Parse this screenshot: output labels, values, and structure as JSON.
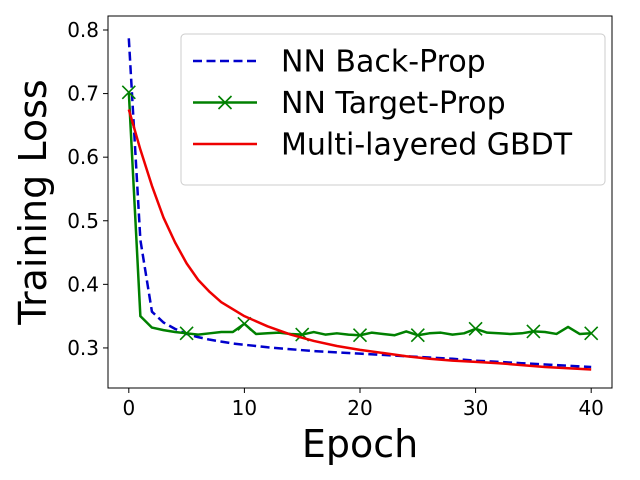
{
  "chart_data": {
    "type": "line",
    "xlabel": "Epoch",
    "ylabel": "Training Loss",
    "xlim": [
      -1.8,
      41.8
    ],
    "ylim": [
      0.237,
      0.822
    ],
    "xticks": [
      0,
      10,
      20,
      30,
      40
    ],
    "yticks": [
      0.3,
      0.4,
      0.5,
      0.6,
      0.7,
      0.8
    ],
    "xtick_labels": [
      "0",
      "10",
      "20",
      "30",
      "40"
    ],
    "ytick_labels": [
      "0.3",
      "0.4",
      "0.5",
      "0.6",
      "0.7",
      "0.8"
    ],
    "grid": false,
    "legend_position": "top-right",
    "series": [
      {
        "name": "NN Back-Prop",
        "color": "#0000cc",
        "style": "dashed",
        "marker": "none",
        "x": [
          0,
          1,
          2,
          3,
          4,
          5,
          6,
          7,
          8,
          9,
          10,
          12,
          14,
          16,
          18,
          20,
          22,
          24,
          26,
          28,
          30,
          32,
          34,
          36,
          38,
          40
        ],
        "y": [
          0.787,
          0.47,
          0.357,
          0.34,
          0.33,
          0.322,
          0.317,
          0.313,
          0.31,
          0.307,
          0.305,
          0.301,
          0.298,
          0.295,
          0.293,
          0.291,
          0.289,
          0.287,
          0.285,
          0.283,
          0.28,
          0.278,
          0.276,
          0.274,
          0.272,
          0.27
        ]
      },
      {
        "name": "NN Target-Prop",
        "color": "#008000",
        "style": "solid",
        "marker": "x",
        "marker_every": 5,
        "x": [
          0,
          1,
          2,
          3,
          4,
          5,
          6,
          7,
          8,
          9,
          10,
          11,
          12,
          13,
          14,
          15,
          16,
          17,
          18,
          19,
          20,
          21,
          22,
          23,
          24,
          25,
          26,
          27,
          28,
          29,
          30,
          31,
          32,
          33,
          34,
          35,
          36,
          37,
          38,
          39,
          40
        ],
        "y": [
          0.702,
          0.35,
          0.332,
          0.328,
          0.325,
          0.323,
          0.321,
          0.323,
          0.325,
          0.325,
          0.338,
          0.322,
          0.323,
          0.324,
          0.322,
          0.321,
          0.325,
          0.321,
          0.323,
          0.321,
          0.32,
          0.324,
          0.322,
          0.32,
          0.326,
          0.32,
          0.323,
          0.324,
          0.321,
          0.323,
          0.33,
          0.324,
          0.323,
          0.322,
          0.323,
          0.326,
          0.325,
          0.322,
          0.333,
          0.322,
          0.323
        ]
      },
      {
        "name": "Multi-layered GBDT",
        "color": "#ee0000",
        "style": "solid",
        "marker": "none",
        "x": [
          0,
          1,
          2,
          3,
          4,
          5,
          6,
          7,
          8,
          10,
          12,
          14,
          16,
          18,
          20,
          22,
          24,
          26,
          28,
          30,
          32,
          34,
          36,
          38,
          40
        ],
        "y": [
          0.675,
          0.612,
          0.555,
          0.505,
          0.466,
          0.433,
          0.407,
          0.388,
          0.372,
          0.35,
          0.334,
          0.321,
          0.311,
          0.303,
          0.297,
          0.292,
          0.287,
          0.283,
          0.28,
          0.278,
          0.276,
          0.273,
          0.27,
          0.268,
          0.266
        ]
      }
    ]
  }
}
